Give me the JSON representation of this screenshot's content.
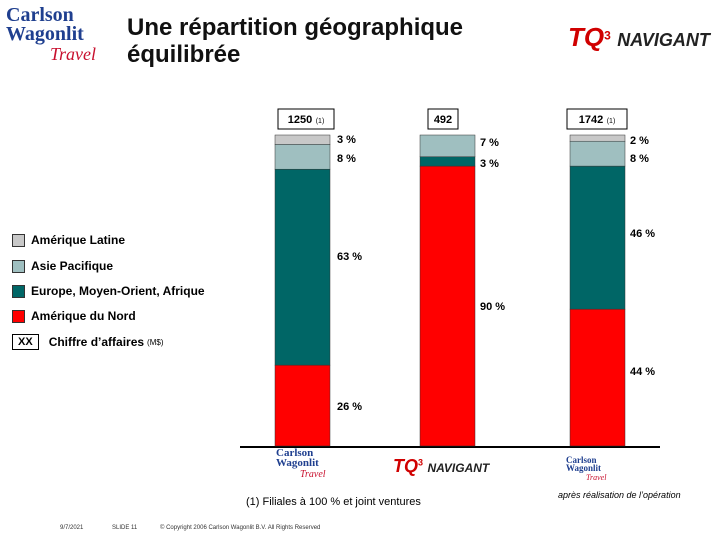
{
  "title_line1": "Une répartition géographique",
  "title_line2": "équilibrée",
  "logos": {
    "cwt_line1": "Carlson",
    "cwt_line2": "Wagonlit",
    "cwt_line3": "Travel",
    "tq_mark": "TQ",
    "tq_sup": "3",
    "navigant": "NAVIGANT"
  },
  "colors": {
    "amerique_latine": "#c8c8c8",
    "asie_pacifique": "#9fbfc0",
    "europe": "#006666",
    "amerique_nord": "#ff0000"
  },
  "legend": {
    "items": [
      "Amérique Latine",
      "Asie Pacifique",
      "Europe, Moyen-Orient, Afrique",
      "Amérique du Nord"
    ],
    "xx_label": "XX",
    "xx_text": "Chiffre d’affaires",
    "xx_unit": "(M$)"
  },
  "chart_data": {
    "type": "bar",
    "stacked": true,
    "normalized": true,
    "categories": [
      "Carlson Wagonlit Travel",
      "TQ3 Navigant",
      "après réalisation de l’opération"
    ],
    "totals": [
      1250,
      492,
      1742
    ],
    "total_labels": [
      "1250",
      "492",
      "1742"
    ],
    "total_notes": [
      "(1)",
      "",
      "(1)"
    ],
    "series": [
      {
        "name": "Amérique du Nord",
        "values": [
          26,
          90,
          44
        ],
        "labels": [
          "26 %",
          "90 %",
          "44 %"
        ]
      },
      {
        "name": "Europe, Moyen-Orient, Afrique",
        "values": [
          63,
          3,
          46
        ],
        "labels": [
          "63 %",
          "3 %",
          "46 %"
        ]
      },
      {
        "name": "Asie Pacifique",
        "values": [
          8,
          7,
          8
        ],
        "labels": [
          "8 %",
          "7 %",
          "8 %"
        ]
      },
      {
        "name": "Amérique Latine",
        "values": [
          3,
          0,
          2
        ],
        "labels": [
          "3 %",
          "",
          "2 %"
        ]
      }
    ],
    "ylim": [
      0,
      100
    ]
  },
  "footnote": "(1) Filiales à 100 % et joint ventures",
  "after_label": "après réalisation de l’opération",
  "footer": {
    "date": "9/7/2021",
    "slide": "SLIDE 11",
    "copyright": "© Copyright 2006 Carlson Wagonlit B.V. All Rights Reserved"
  }
}
